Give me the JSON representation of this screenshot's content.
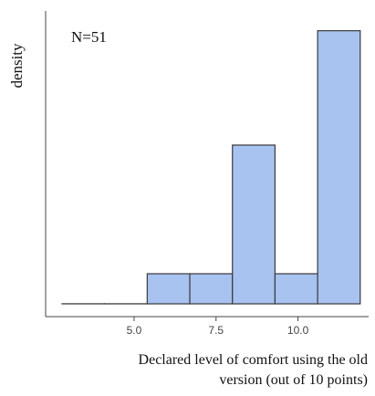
{
  "chart_data": {
    "type": "bar",
    "subtype": "histogram",
    "bins": [
      {
        "x0": 2.8,
        "x1": 4.1,
        "density": 0.045
      },
      {
        "x0": 4.1,
        "x1": 5.4,
        "density": 0.045
      },
      {
        "x0": 5.4,
        "x1": 6.7,
        "density": 0.15
      },
      {
        "x0": 6.7,
        "x1": 8.0,
        "density": 0.15
      },
      {
        "x0": 8.0,
        "x1": 9.3,
        "density": 0.6
      },
      {
        "x0": 9.3,
        "x1": 10.6,
        "density": 0.15
      },
      {
        "x0": 10.6,
        "x1": 11.9,
        "density": 1.0
      }
    ],
    "xlim": [
      2.3,
      12.1
    ],
    "ylim": [
      0,
      1.05
    ],
    "x_ticks": [
      5.0,
      7.5,
      10.0
    ],
    "x_tick_labels": [
      "5.0",
      "7.5",
      "10.0"
    ],
    "ylabel": "density",
    "xlabel_lines": [
      "Declared level of comfort using the old",
      "version (out of 10 points)"
    ],
    "annotation": "N=51",
    "grid": false,
    "legend": "none",
    "colors": {
      "bar_fill": "#a8c3f0",
      "bar_stroke": "#3a3a3a",
      "axis": "#444444"
    }
  }
}
